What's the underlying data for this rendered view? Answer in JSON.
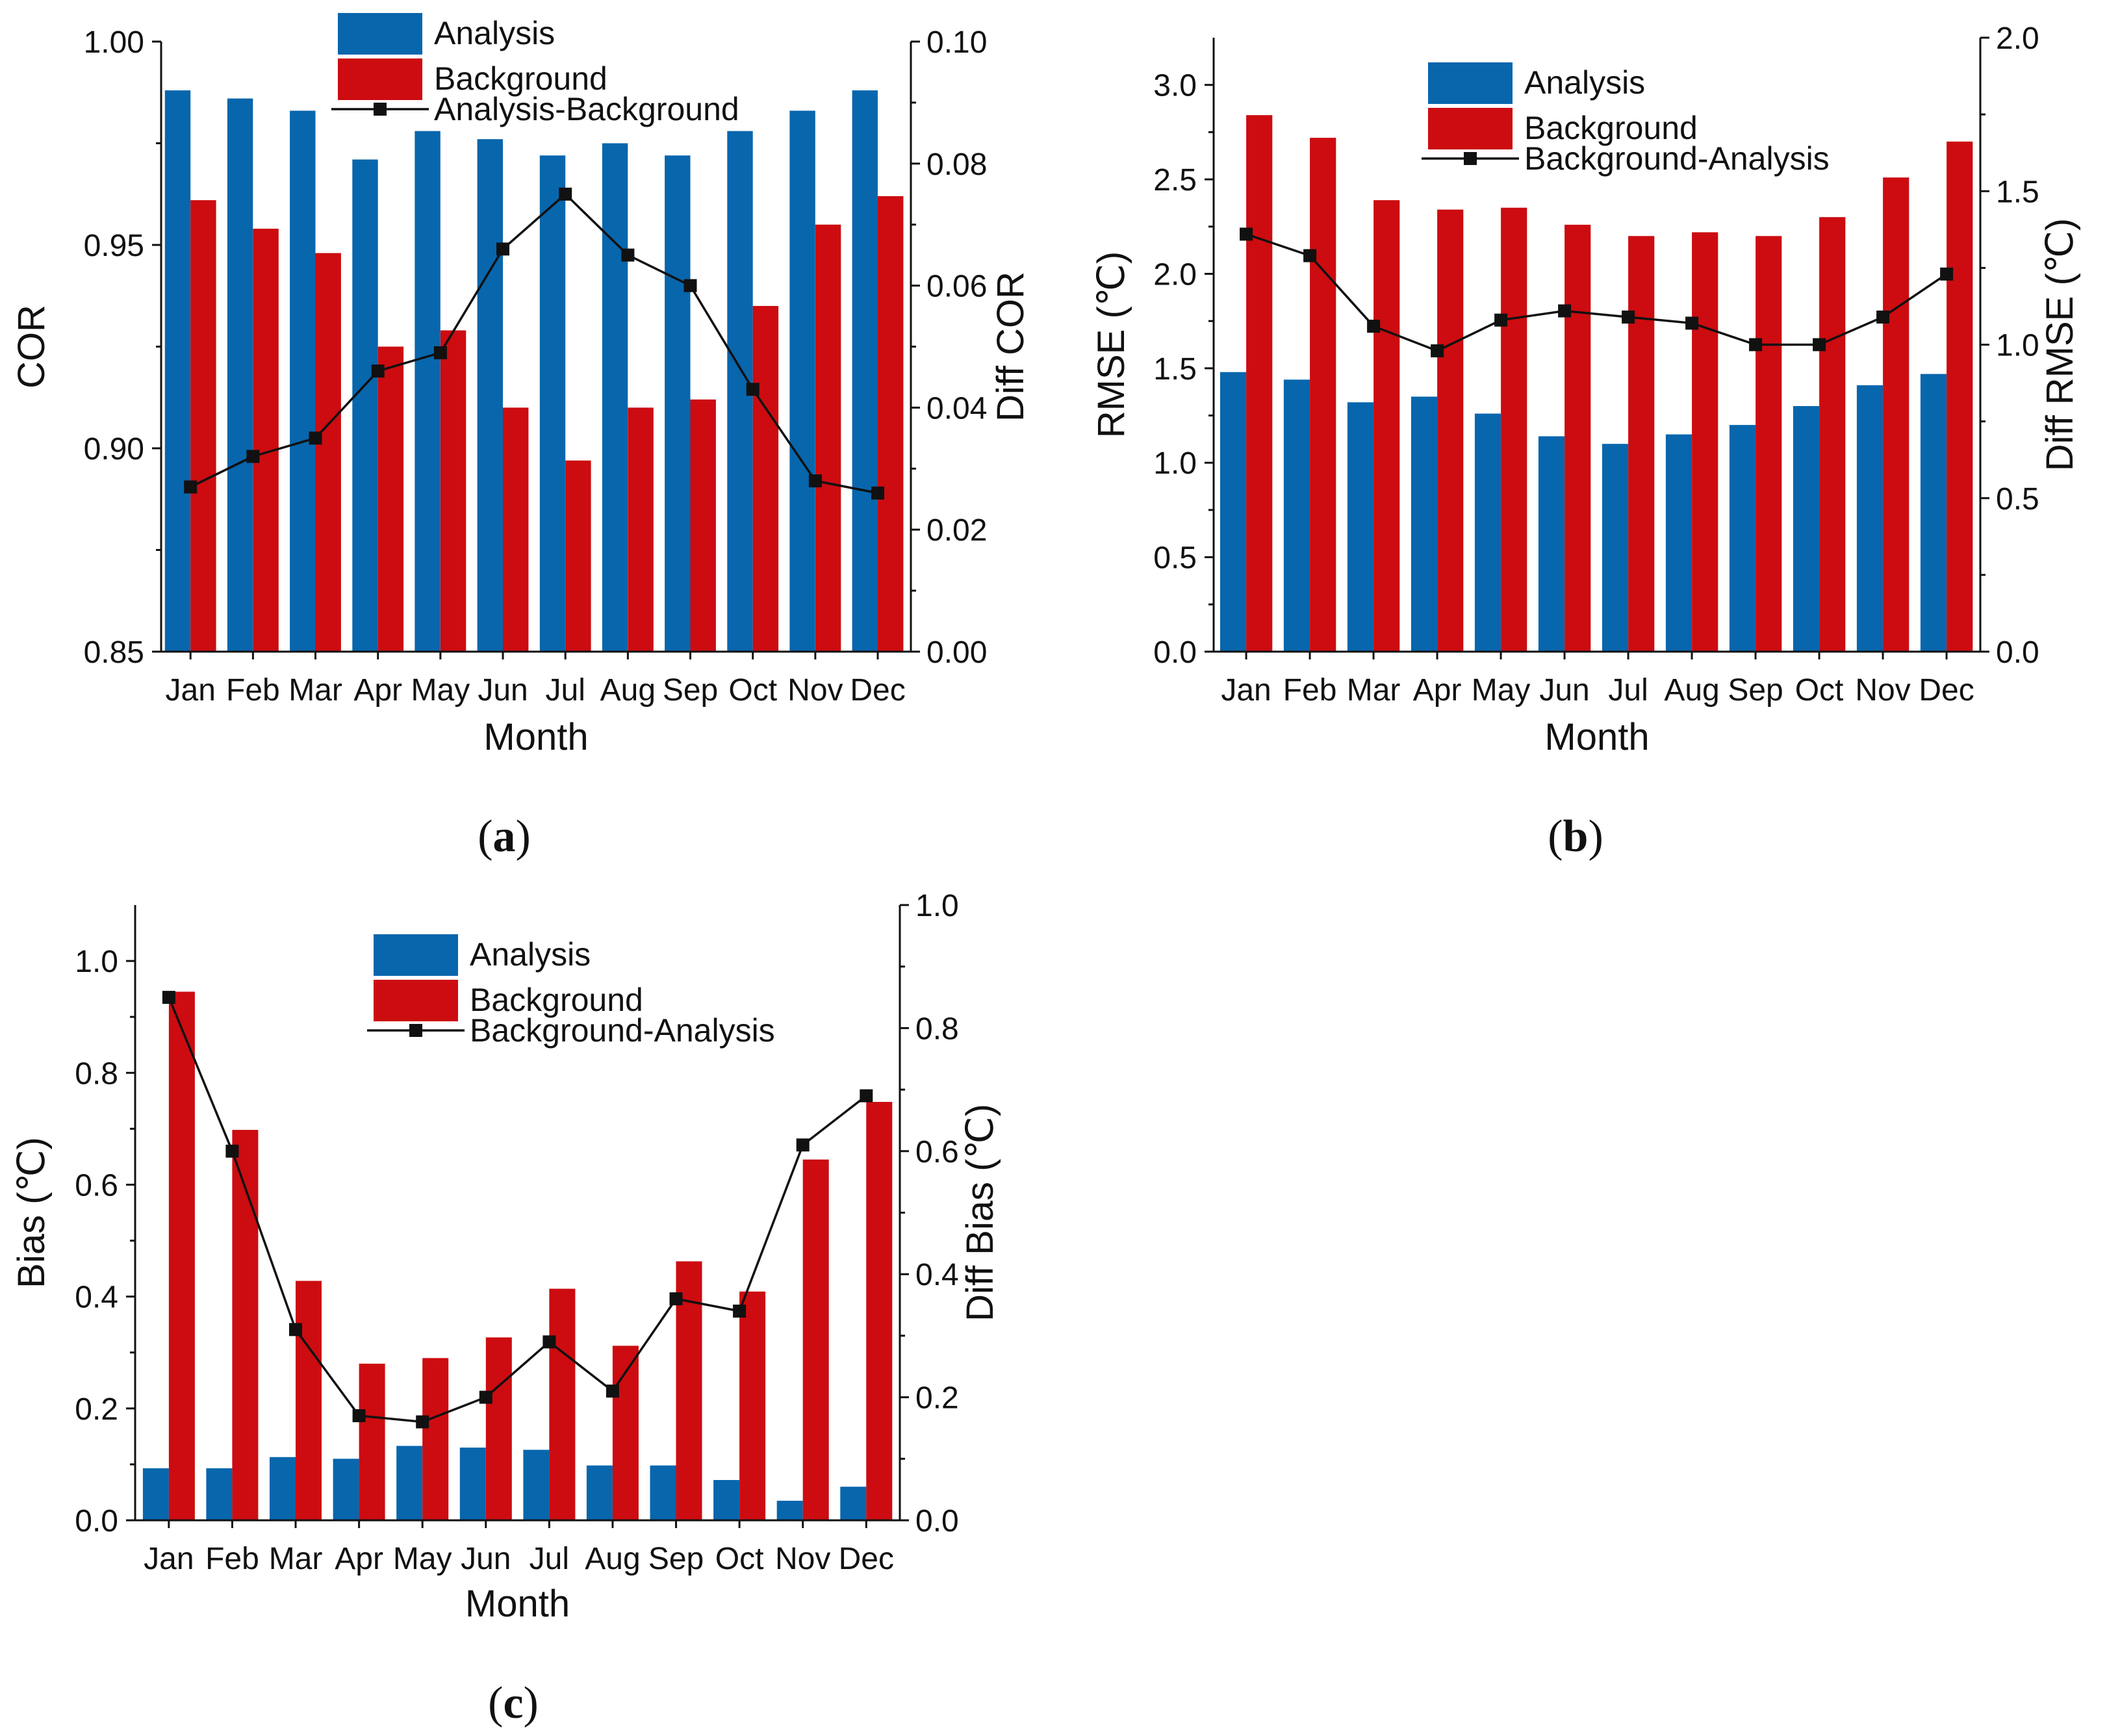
{
  "colors": {
    "analysis": "#0866ad",
    "background": "#cc0c10",
    "line": "#111111",
    "axis": "#111111",
    "text": "#111111"
  },
  "chart_data": [
    {
      "type": "bar",
      "panel_label_prefix": "(",
      "panel_letter": "a",
      "panel_label_suffix": ")",
      "categories": [
        "Jan",
        "Feb",
        "Mar",
        "Apr",
        "May",
        "Jun",
        "Jul",
        "Aug",
        "Sep",
        "Oct",
        "Nov",
        "Dec"
      ],
      "xlabel": "Month",
      "ylabel": "COR",
      "ylabel_right": "Diff COR",
      "ylim": [
        0.85,
        1.0
      ],
      "yticks": [
        "0.85",
        "0.90",
        "0.95",
        "1.00"
      ],
      "ylim_right": [
        0.0,
        0.1
      ],
      "yticks_right": [
        "0.00",
        "0.02",
        "0.04",
        "0.06",
        "0.08",
        "0.10"
      ],
      "legend_position": "top-center",
      "series": [
        {
          "name": "Analysis",
          "kind": "bar",
          "axis": "left",
          "color_key": "analysis",
          "values": [
            0.988,
            0.986,
            0.983,
            0.971,
            0.978,
            0.976,
            0.972,
            0.975,
            0.972,
            0.978,
            0.983,
            0.988
          ]
        },
        {
          "name": "Background",
          "kind": "bar",
          "axis": "left",
          "color_key": "background",
          "values": [
            0.961,
            0.954,
            0.948,
            0.925,
            0.929,
            0.91,
            0.897,
            0.91,
            0.912,
            0.935,
            0.955,
            0.962
          ]
        },
        {
          "name": "Analysis-Background",
          "kind": "line",
          "axis": "right",
          "color_key": "line",
          "values": [
            0.027,
            0.032,
            0.035,
            0.046,
            0.049,
            0.066,
            0.075,
            0.065,
            0.06,
            0.043,
            0.028,
            0.026
          ]
        }
      ]
    },
    {
      "type": "bar",
      "panel_label_prefix": "(",
      "panel_letter": "b",
      "panel_label_suffix": ")",
      "categories": [
        "Jan",
        "Feb",
        "Mar",
        "Apr",
        "May",
        "Jun",
        "Jul",
        "Aug",
        "Sep",
        "Oct",
        "Nov",
        "Dec"
      ],
      "xlabel": "Month",
      "ylabel": "RMSE (℃)",
      "ylabel_right": "Diff RMSE (℃)",
      "ylim": [
        0.0,
        3.25
      ],
      "yticks": [
        "0.0",
        "0.5",
        "1.0",
        "1.5",
        "2.0",
        "2.5",
        "3.0"
      ],
      "ylim_right": [
        0.0,
        2.0
      ],
      "yticks_right": [
        "0.0",
        "0.5",
        "1.0",
        "1.5",
        "2.0"
      ],
      "legend_position": "top-right",
      "series": [
        {
          "name": "Analysis",
          "kind": "bar",
          "axis": "left",
          "color_key": "analysis",
          "values": [
            1.48,
            1.44,
            1.32,
            1.35,
            1.26,
            1.14,
            1.1,
            1.15,
            1.2,
            1.3,
            1.41,
            1.47
          ]
        },
        {
          "name": "Background",
          "kind": "bar",
          "axis": "left",
          "color_key": "background",
          "values": [
            2.84,
            2.72,
            2.39,
            2.34,
            2.35,
            2.26,
            2.2,
            2.22,
            2.2,
            2.3,
            2.51,
            2.7
          ]
        },
        {
          "name": "Background-Analysis",
          "kind": "line",
          "axis": "right",
          "color_key": "line",
          "values": [
            1.36,
            1.29,
            1.06,
            0.98,
            1.08,
            1.11,
            1.09,
            1.07,
            1.0,
            1.0,
            1.09,
            1.23
          ]
        }
      ]
    },
    {
      "type": "bar",
      "panel_label_prefix": "(",
      "panel_letter": "c",
      "panel_label_suffix": ")",
      "categories": [
        "Jan",
        "Feb",
        "Mar",
        "Apr",
        "May",
        "Jun",
        "Jul",
        "Aug",
        "Sep",
        "Oct",
        "Nov",
        "Dec"
      ],
      "xlabel": "Month",
      "ylabel": "Bias (℃)",
      "ylabel_right": "Diff Bias (℃)",
      "ylim": [
        0.0,
        1.1
      ],
      "yticks": [
        "0.0",
        "0.2",
        "0.4",
        "0.6",
        "0.8",
        "1.0"
      ],
      "ylim_right": [
        0.0,
        1.0
      ],
      "yticks_right": [
        "0.0",
        "0.2",
        "0.4",
        "0.6",
        "0.8",
        "1.0"
      ],
      "legend_position": "top-center",
      "series": [
        {
          "name": "Analysis",
          "kind": "bar",
          "axis": "left",
          "color_key": "analysis",
          "values": [
            0.093,
            0.093,
            0.113,
            0.11,
            0.133,
            0.13,
            0.126,
            0.098,
            0.098,
            0.072,
            0.035,
            0.06
          ]
        },
        {
          "name": "Background",
          "kind": "bar",
          "axis": "left",
          "color_key": "background",
          "values": [
            0.945,
            0.698,
            0.428,
            0.28,
            0.29,
            0.327,
            0.414,
            0.312,
            0.463,
            0.409,
            0.645,
            0.748
          ]
        },
        {
          "name": "Background-Analysis",
          "kind": "line",
          "axis": "right",
          "color_key": "line",
          "values": [
            0.85,
            0.6,
            0.31,
            0.17,
            0.16,
            0.2,
            0.29,
            0.21,
            0.36,
            0.34,
            0.61,
            0.69
          ]
        }
      ]
    }
  ]
}
